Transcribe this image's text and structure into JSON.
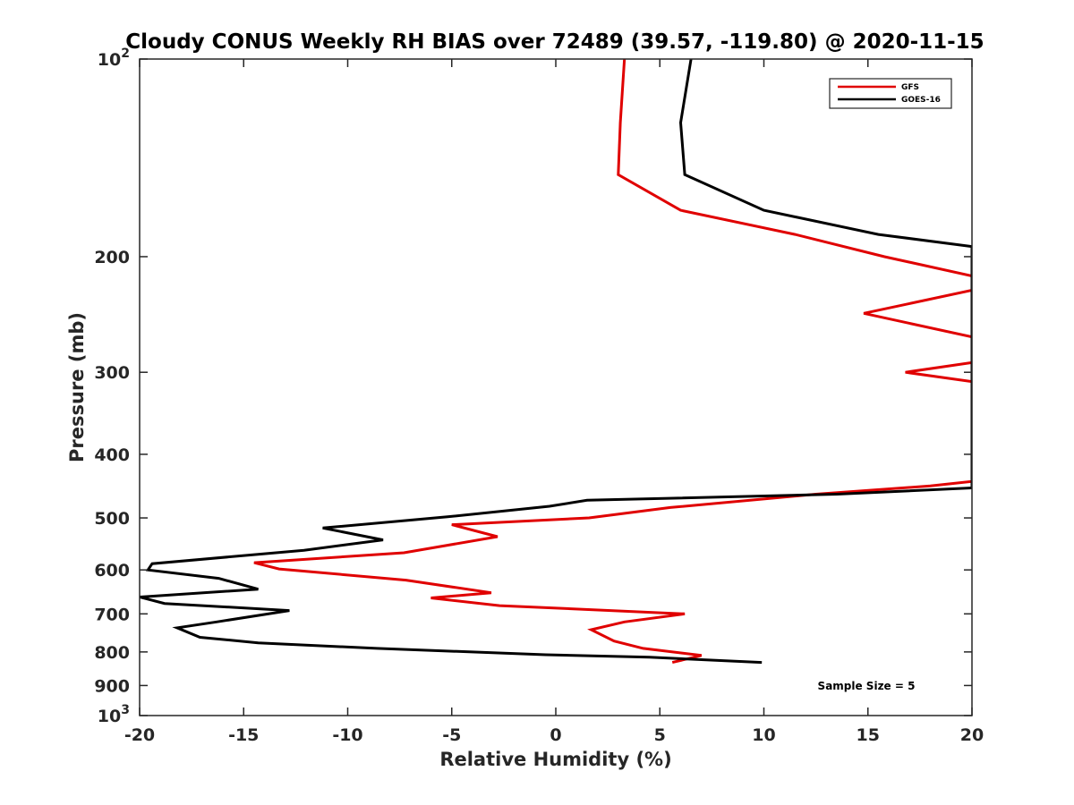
{
  "chart_data": {
    "type": "line",
    "title": "Cloudy CONUS Weekly RH BIAS over 72489 (39.57, -119.80) @ 2020-11-15",
    "xlabel": "Relative Humidity (%)",
    "ylabel": "Pressure (mb)",
    "xlim": [
      -20,
      20
    ],
    "ylim": [
      100,
      1000
    ],
    "y_scale": "log",
    "y_reversed": true,
    "grid": false,
    "legend_position": "top-right",
    "x_ticks": [
      "-20",
      "-15",
      "-10",
      "-5",
      "0",
      "5",
      "10",
      "15",
      "20"
    ],
    "y_ticks": [
      {
        "value": 100,
        "base": "10",
        "exp": "2"
      },
      {
        "value": 200,
        "label": "200"
      },
      {
        "value": 300,
        "label": "300"
      },
      {
        "value": 400,
        "label": "400"
      },
      {
        "value": 500,
        "label": "500"
      },
      {
        "value": 600,
        "label": "600"
      },
      {
        "value": 700,
        "label": "700"
      },
      {
        "value": 800,
        "label": "800"
      },
      {
        "value": 900,
        "label": "900"
      },
      {
        "value": 1000,
        "base": "10",
        "exp": "3"
      }
    ],
    "annotation": "Sample Size = 5",
    "series": [
      {
        "name": "GFS",
        "color": "#e00000",
        "points": [
          [
            3.3,
            100
          ],
          [
            3.1,
            125
          ],
          [
            3.0,
            150
          ],
          [
            6.0,
            170
          ],
          [
            11.5,
            185
          ],
          [
            15.8,
            200
          ],
          [
            20.0,
            214
          ],
          [
            20.0,
            225
          ],
          [
            14.8,
            244
          ],
          [
            20.0,
            265
          ],
          [
            20.0,
            290
          ],
          [
            16.8,
            300
          ],
          [
            20.0,
            310
          ],
          [
            20.0,
            440
          ],
          [
            18.0,
            447
          ],
          [
            12.5,
            460
          ],
          [
            5.5,
            482
          ],
          [
            1.6,
            500
          ],
          [
            -5.0,
            512
          ],
          [
            -2.8,
            534
          ],
          [
            -7.3,
            565
          ],
          [
            -14.5,
            585
          ],
          [
            -13.3,
            598
          ],
          [
            -7.2,
            622
          ],
          [
            -3.1,
            650
          ],
          [
            -6.0,
            662
          ],
          [
            -2.7,
            680
          ],
          [
            6.2,
            700
          ],
          [
            3.3,
            720
          ],
          [
            1.7,
            740
          ],
          [
            2.8,
            770
          ],
          [
            4.2,
            790
          ],
          [
            7.0,
            810
          ],
          [
            5.6,
            830
          ]
        ]
      },
      {
        "name": "GOES-16",
        "color": "#000000",
        "points": [
          [
            6.5,
            100
          ],
          [
            6.0,
            125
          ],
          [
            6.2,
            150
          ],
          [
            10.0,
            170
          ],
          [
            15.5,
            185
          ],
          [
            20.0,
            193
          ],
          [
            20.0,
            450
          ],
          [
            13.5,
            460
          ],
          [
            1.5,
            470
          ],
          [
            -0.3,
            480
          ],
          [
            -5.2,
            498
          ],
          [
            -11.2,
            518
          ],
          [
            -8.3,
            540
          ],
          [
            -12.1,
            560
          ],
          [
            -19.4,
            587
          ],
          [
            -19.6,
            600
          ],
          [
            -16.2,
            618
          ],
          [
            -14.3,
            642
          ],
          [
            -20.0,
            660
          ],
          [
            -18.8,
            675
          ],
          [
            -12.8,
            692
          ],
          [
            -16.3,
            720
          ],
          [
            -18.2,
            735
          ],
          [
            -17.1,
            760
          ],
          [
            -14.3,
            775
          ],
          [
            -8.6,
            790
          ],
          [
            -0.5,
            808
          ],
          [
            4.5,
            815
          ],
          [
            9.9,
            830
          ]
        ]
      }
    ]
  }
}
